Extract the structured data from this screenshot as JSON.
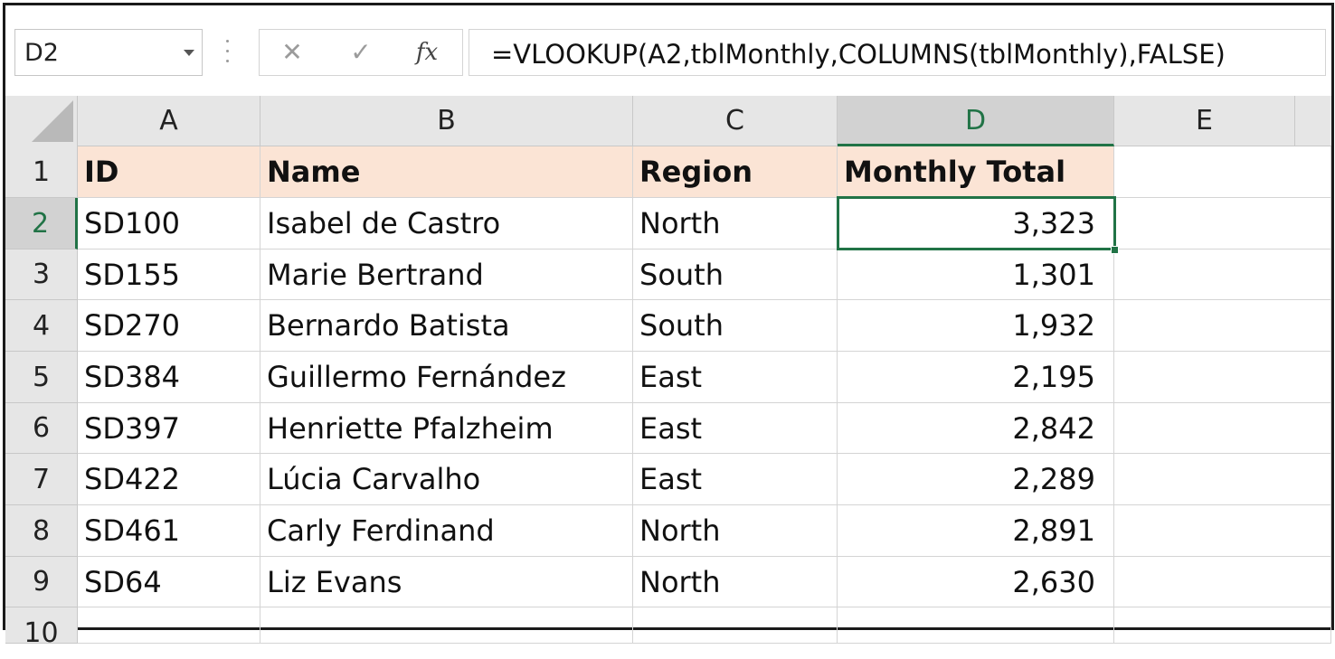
{
  "formula_bar": {
    "name_box": "D2",
    "cancel_icon": "✕",
    "enter_icon": "✓",
    "fx_label": "fx",
    "formula": "=VLOOKUP(A2,tblMonthly,COLUMNS(tblMonthly),FALSE)"
  },
  "columns": [
    "A",
    "B",
    "C",
    "D",
    "E"
  ],
  "rows": [
    "1",
    "2",
    "3",
    "4",
    "5",
    "6",
    "7",
    "8",
    "9",
    "10"
  ],
  "header": {
    "id": "ID",
    "name": "Name",
    "region": "Region",
    "total": "Monthly Total"
  },
  "records": [
    {
      "id": "SD100",
      "name": "Isabel de Castro",
      "region": "North",
      "total": "3,323"
    },
    {
      "id": "SD155",
      "name": "Marie Bertrand",
      "region": "South",
      "total": "1,301"
    },
    {
      "id": "SD270",
      "name": "Bernardo Batista",
      "region": "South",
      "total": "1,932"
    },
    {
      "id": "SD384",
      "name": "Guillermo Fernández",
      "region": "East",
      "total": "2,195"
    },
    {
      "id": "SD397",
      "name": "Henriette Pfalzheim",
      "region": "East",
      "total": "2,842"
    },
    {
      "id": "SD422",
      "name": "Lúcia Carvalho",
      "region": "East",
      "total": "2,289"
    },
    {
      "id": "SD461",
      "name": "Carly Ferdinand",
      "region": "North",
      "total": "2,891"
    },
    {
      "id": "SD64",
      "name": "Liz Evans",
      "region": "North",
      "total": "2,630"
    }
  ],
  "selected_cell": "D2",
  "colors": {
    "selection": "#217346",
    "header_fill": "#fbe4d5"
  }
}
